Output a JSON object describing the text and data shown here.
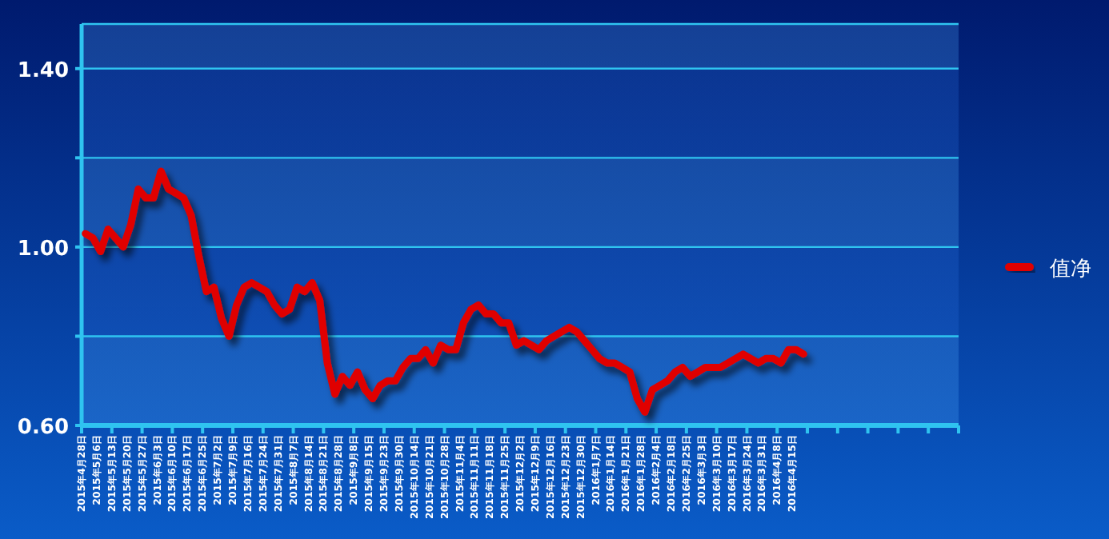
{
  "chart_data": {
    "type": "line",
    "categories": [
      "2015年4月28日",
      null,
      "2015年5月6日",
      null,
      "2015年5月13日",
      null,
      "2015年5月20日",
      null,
      "2015年5月27日",
      null,
      "2015年6月3日",
      null,
      "2015年6月10日",
      null,
      "2015年6月17日",
      null,
      "2015年6月25日",
      null,
      "2015年7月2日",
      null,
      "2015年7月9日",
      null,
      "2015年7月16日",
      null,
      "2015年7月24日",
      null,
      "2015年7月31日",
      null,
      "2015年8月7日",
      null,
      "2015年8月14日",
      null,
      "2015年8月21日",
      null,
      "2015年8月28日",
      null,
      "2015年9月8日",
      null,
      "2015年9月15日",
      null,
      "2015年9月23日",
      null,
      "2015年9月30日",
      null,
      "2015年10月14日",
      null,
      "2015年10月21日",
      null,
      "2015年10月28日",
      null,
      "2015年11月4日",
      null,
      "2015年11月11日",
      null,
      "2015年11月18日",
      null,
      "2015年11月25日",
      null,
      "2015年12月2日",
      null,
      "2015年12月9日",
      null,
      "2015年12月16日",
      null,
      "2015年12月23日",
      null,
      "2015年12月30日",
      null,
      "2016年1月7日",
      null,
      "2016年1月14日",
      null,
      "2016年1月21日",
      null,
      "2016年1月28日",
      null,
      "2016年2月4日",
      null,
      "2016年2月18日",
      null,
      "2016年2月25日",
      null,
      "2016年3月3日",
      null,
      "2016年3月10日",
      null,
      "2016年3月17日",
      null,
      "2016年3月24日",
      null,
      "2016年3月31日",
      null,
      "2016年4月8日",
      null,
      "2016年4月15日",
      null,
      null,
      null,
      null,
      null,
      null,
      null,
      null,
      null,
      null,
      null,
      null,
      null,
      null,
      null,
      null,
      null,
      null,
      null,
      null,
      null
    ],
    "series": [
      {
        "name": "值净",
        "color": "#e00000",
        "values": [
          1.03,
          1.02,
          0.99,
          1.04,
          1.02,
          1.0,
          1.05,
          1.13,
          1.11,
          1.11,
          1.17,
          1.13,
          1.12,
          1.11,
          1.07,
          0.98,
          0.9,
          0.91,
          0.84,
          0.8,
          0.87,
          0.91,
          0.92,
          0.91,
          0.9,
          0.87,
          0.85,
          0.86,
          0.91,
          0.9,
          0.92,
          0.88,
          0.74,
          0.67,
          0.71,
          0.69,
          0.72,
          0.68,
          0.66,
          0.69,
          0.7,
          0.7,
          0.73,
          0.75,
          0.75,
          0.77,
          0.74,
          0.78,
          0.77,
          0.77,
          0.83,
          0.86,
          0.87,
          0.85,
          0.85,
          0.83,
          0.83,
          0.78,
          0.79,
          0.78,
          0.77,
          0.79,
          0.8,
          0.81,
          0.82,
          0.81,
          0.79,
          0.77,
          0.75,
          0.74,
          0.74,
          0.73,
          0.72,
          0.66,
          0.63,
          0.68,
          0.69,
          0.7,
          0.72,
          0.73,
          0.71,
          0.72,
          0.73,
          0.73,
          0.73,
          0.74,
          0.75,
          0.76,
          0.75,
          0.74,
          0.75,
          0.75,
          0.74,
          0.77,
          0.77,
          0.76,
          null,
          null,
          null,
          null,
          null,
          null,
          null,
          null,
          null,
          null,
          null,
          null,
          null,
          null,
          null,
          null,
          null,
          null,
          null,
          null
        ]
      }
    ],
    "ylim": [
      0.6,
      1.5
    ],
    "yticks": [
      {
        "value": 0.6,
        "label": "0.60"
      },
      {
        "value": 0.8,
        "label": null
      },
      {
        "value": 1.0,
        "label": "1.00"
      },
      {
        "value": 1.2,
        "label": null
      },
      {
        "value": 1.4,
        "label": "1.40"
      }
    ],
    "grid": "y",
    "legend": "right",
    "marker": "none",
    "line_style": "solid"
  }
}
